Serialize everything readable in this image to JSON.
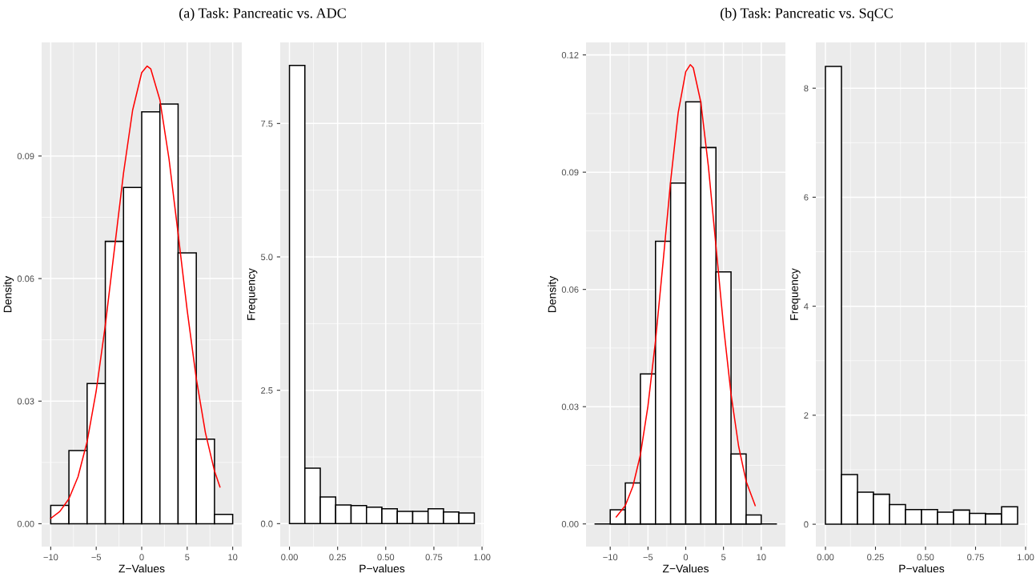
{
  "chart_data": [
    {
      "type": "histogram",
      "title": "(a) Task: Pancreatic vs. ADC",
      "xlabel": "Z−Values",
      "ylabel": "Density",
      "bins": [
        -10,
        -8,
        -6,
        -4,
        -2,
        0,
        2,
        4,
        6,
        8,
        10
      ],
      "values": [
        0.0045,
        0.0179,
        0.0343,
        0.0691,
        0.0823,
        0.1008,
        0.1027,
        0.0663,
        0.0207,
        0.0023
      ],
      "color": "#ffffff",
      "series": [
        {
          "type": "line",
          "color": "#ff0000",
          "x": [
            -10,
            -9,
            -8,
            -7,
            -6,
            -5,
            -4,
            -3,
            -2,
            -1,
            0,
            0.6,
            1,
            2,
            3,
            4,
            5,
            6,
            7,
            8,
            8.6
          ],
          "values": [
            0.0013,
            0.003,
            0.0061,
            0.0115,
            0.0201,
            0.0325,
            0.0486,
            0.0672,
            0.0858,
            0.1012,
            0.1104,
            0.112,
            0.1113,
            0.1037,
            0.0893,
            0.071,
            0.0522,
            0.0355,
            0.0223,
            0.0129,
            0.009
          ]
        }
      ],
      "xlim": [
        -11,
        11
      ],
      "ylim": [
        -0.0056,
        0.1178
      ],
      "xticks": [
        {
          "value": -10,
          "label": "−10"
        },
        {
          "value": -5,
          "label": "−5"
        },
        0,
        5,
        10
      ],
      "yticks": [
        {
          "value": 0,
          "label": "0.00"
        },
        0.03,
        0.06,
        0.09
      ],
      "grid": true
    },
    {
      "type": "histogram",
      "xlabel": "P−values",
      "ylabel": "Frequency",
      "bins": [
        0,
        0.08,
        0.16,
        0.24,
        0.32,
        0.4,
        0.48,
        0.56,
        0.64,
        0.72,
        0.8,
        0.88,
        0.96
      ],
      "values": [
        8.59,
        1.04,
        0.5,
        0.35,
        0.34,
        0.31,
        0.28,
        0.23,
        0.23,
        0.28,
        0.22,
        0.2
      ],
      "color": "#ffffff",
      "xlim": [
        -0.048,
        1.008
      ],
      "ylim": [
        -0.43,
        9.02
      ],
      "xticks": [
        {
          "value": 0,
          "label": "0.00"
        },
        0.25,
        {
          "value": 0.5,
          "label": "0.50"
        },
        0.75,
        {
          "value": 1,
          "label": "1.00"
        }
      ],
      "yticks": [
        {
          "value": 0,
          "label": "0.0"
        },
        {
          "value": 2.5,
          "label": "2.5"
        },
        {
          "value": 5,
          "label": "5.0"
        },
        {
          "value": 7.5,
          "label": "7.5"
        }
      ],
      "grid": true
    },
    {
      "type": "histogram",
      "title": "(b) Task: Pancreatic vs. SqCC",
      "xlabel": "Z−Values",
      "ylabel": "Density",
      "bins": [
        -10,
        -8,
        -6,
        -4,
        -2,
        0,
        2,
        4,
        6,
        8,
        10
      ],
      "values": [
        0.0036,
        0.0105,
        0.0384,
        0.0723,
        0.0872,
        0.108,
        0.0963,
        0.0645,
        0.0179,
        0.0023
      ],
      "color": "#ffffff",
      "series": [
        {
          "type": "line",
          "color": "#ff0000",
          "x": [
            -9.2,
            -8,
            -7,
            -6,
            -5,
            -4,
            -3,
            -2,
            -1,
            0,
            0.6,
            1,
            2,
            3,
            4,
            5,
            6,
            7,
            8,
            9.2
          ],
          "values": [
            0.0018,
            0.0047,
            0.0096,
            0.0177,
            0.0302,
            0.0469,
            0.067,
            0.0877,
            0.1052,
            0.1157,
            0.1175,
            0.1167,
            0.1079,
            0.0915,
            0.0712,
            0.0507,
            0.0332,
            0.0199,
            0.0109,
            0.0047
          ]
        },
        {
          "type": "line",
          "color": "#000000",
          "x": [
            -12,
            12
          ],
          "values": [
            0,
            0
          ]
        }
      ],
      "xlim": [
        -13.2,
        13.2
      ],
      "ylim": [
        -0.0058,
        0.1232
      ],
      "xticks": [
        {
          "value": -10,
          "label": "−10"
        },
        {
          "value": -5,
          "label": "−5"
        },
        0,
        5,
        10
      ],
      "yticks": [
        {
          "value": 0,
          "label": "0.00"
        },
        0.03,
        0.06,
        0.09,
        0.12
      ],
      "grid": true
    },
    {
      "type": "histogram",
      "xlabel": "P−values",
      "ylabel": "Frequency",
      "bins": [
        0,
        0.08,
        0.16,
        0.24,
        0.32,
        0.4,
        0.48,
        0.56,
        0.64,
        0.72,
        0.8,
        0.88,
        0.96
      ],
      "values": [
        8.4,
        0.91,
        0.59,
        0.55,
        0.36,
        0.27,
        0.27,
        0.22,
        0.26,
        0.2,
        0.19,
        0.32
      ],
      "color": "#ffffff",
      "xlim": [
        -0.048,
        1.008
      ],
      "ylim": [
        -0.41,
        8.84
      ],
      "xticks": [
        {
          "value": 0,
          "label": "0.00"
        },
        0.25,
        {
          "value": 0.5,
          "label": "0.50"
        },
        0.75,
        {
          "value": 1,
          "label": "1.00"
        }
      ],
      "yticks": [
        0,
        2,
        4,
        6,
        8
      ],
      "grid": true
    }
  ]
}
